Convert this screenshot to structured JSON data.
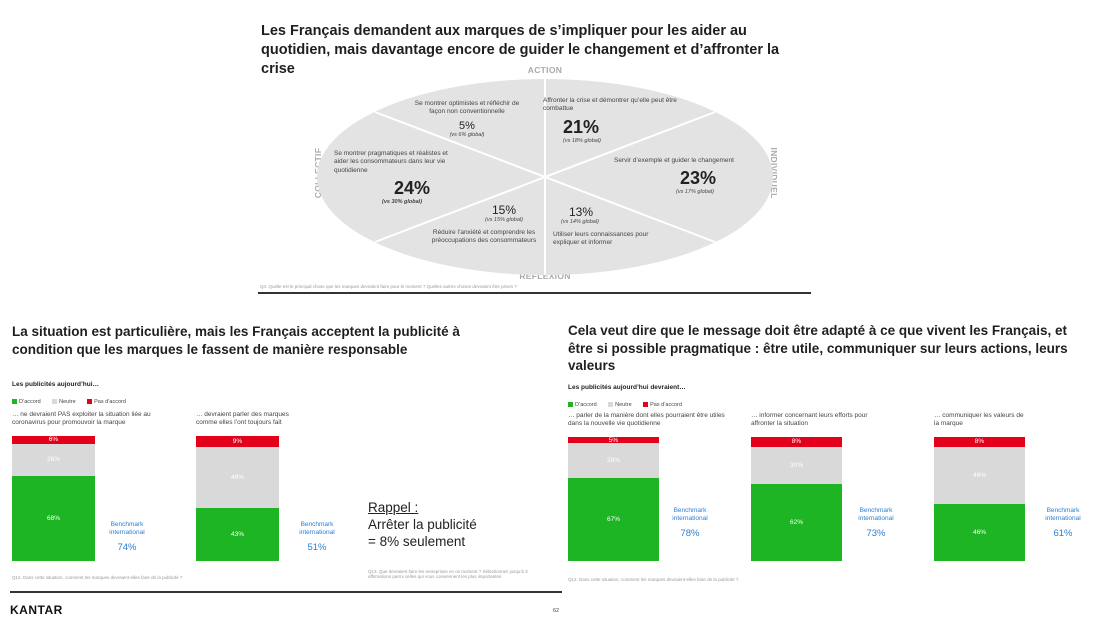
{
  "top": {
    "title": "Les Français demandent aux marques de s’impliquer pour les aider au quotidien, mais davantage encore de guider le changement et d’affronter la crise",
    "axes": {
      "top": "ACTION",
      "bottom": "RÉFLEXION",
      "left": "COLLECTIF",
      "right": "INDIVIDUEL"
    },
    "segments": [
      {
        "text": "Se montrer optimistes et réfléchir de façon non conventionnelle",
        "pct": "5%",
        "vs": "(vs 6% global)"
      },
      {
        "text": "Affronter la crise et démontrer qu’elle peut être combattue",
        "pct": "21%",
        "vs": "(vs 18% global)"
      },
      {
        "text": "Se montrer pragmatiques et réalistes et aider les consommateurs dans leur vie quotidienne",
        "pct": "24%",
        "vs": "(vs 30% global)"
      },
      {
        "text": "Servir d’exemple et guider le changement",
        "pct": "23%",
        "vs": "(vs 17% global)"
      },
      {
        "text": "Réduire l’anxiété et comprendre les préoccupations des consommateurs",
        "pct": "15%",
        "vs": "(vs 15% global)"
      },
      {
        "text": "Utiliser leurs connaissances pour expliquer et informer",
        "pct": "13%",
        "vs": "(vs 14% global)"
      }
    ],
    "footnote": "Q4. Quelle est le principal chose que les marques devraient faire pour le moment ? Quelles autres choses devraient être prises ?"
  },
  "left": {
    "title": "La situation est particulière, mais les Français acceptent la publicité à condition que les marques le fassent de manière responsable",
    "subtitle": "Les publicités aujourd’hui…",
    "legend": [
      "D’accord",
      "Neutre",
      "Pas d’accord"
    ],
    "charts": [
      {
        "label": "… ne devraient PAS exploiter la situation liée au coronavirus pour promouvoir la marque",
        "bench_label": "Benchmark international",
        "bench": "74%"
      },
      {
        "label": "… devraient parler des marques comme elles l’ont toujours fait",
        "bench_label": "Benchmark international",
        "bench": "51%"
      }
    ],
    "rappel_title": "Rappel :",
    "rappel_l1": "Arrêter la publicité",
    "rappel_l2": "= 8% seulement",
    "footnote1": "Q12. Dans cette situation, comment les marques devraient-elles faire de la publicité ?",
    "footnote2": "Q13. Que devraient faire les entreprises en ce moment ? Sélectionnez jusqu’à 3 affirmations parmi celles qui vous conviennent les plus importantes"
  },
  "right": {
    "title": "Cela veut dire que le message doit être adapté à ce que vivent les Français, et être si possible pragmatique : être utile, communiquer sur leurs actions, leurs valeurs",
    "subtitle": "Les publicités aujourd’hui devraient…",
    "legend": [
      "D’accord",
      "Neutre",
      "Pas d’accord"
    ],
    "charts": [
      {
        "label": "… parler de la manière dont elles pourraient être utiles dans la nouvelle vie quotidienne",
        "bench_label": "Benchmark international",
        "bench": "78%"
      },
      {
        "label": "… informer concernant leurs efforts pour affronter la situation",
        "bench_label": "Benchmark international",
        "bench": "73%"
      },
      {
        "label": "… communiquer les valeurs de la marque",
        "bench_label": "Benchmark international",
        "bench": "61%"
      }
    ],
    "footnote": "Q12. Dans cette situation, comment les marques devraient-elles faire de la publicité ?"
  },
  "brand": "KANTAR",
  "page_number": "62",
  "colors": {
    "agree": "#1db523",
    "neutral": "#d9d9d9",
    "disagree": "#e3001b",
    "benchmark": "#2a7fd4",
    "ellipse": "#e3e3e3"
  },
  "chart_data": [
    {
      "type": "bar",
      "title": "Les publicités aujourd’hui…",
      "categories": [
        "… ne devraient PAS exploiter la situation liée au coronavirus pour promouvoir la marque",
        "… devraient parler des marques comme elles l’ont toujours fait"
      ],
      "series": [
        {
          "name": "D’accord",
          "values": [
            68,
            43
          ]
        },
        {
          "name": "Neutre",
          "values": [
            26,
            49
          ]
        },
        {
          "name": "Pas d’accord",
          "values": [
            6,
            9
          ]
        }
      ],
      "stacked": true,
      "ylim": [
        0,
        100
      ]
    },
    {
      "type": "bar",
      "title": "Les publicités aujourd’hui devraient…",
      "categories": [
        "… parler de la manière dont elles pourraient être utiles dans la nouvelle vie quotidienne",
        "… informer concernant leurs efforts pour affronter la situation",
        "… communiquer les valeurs de la marque"
      ],
      "series": [
        {
          "name": "D’accord",
          "values": [
            67,
            62,
            46
          ]
        },
        {
          "name": "Neutre",
          "values": [
            28,
            30,
            46
          ]
        },
        {
          "name": "Pas d’accord",
          "values": [
            5,
            8,
            8
          ]
        }
      ],
      "stacked": true,
      "ylim": [
        0,
        100
      ]
    }
  ]
}
